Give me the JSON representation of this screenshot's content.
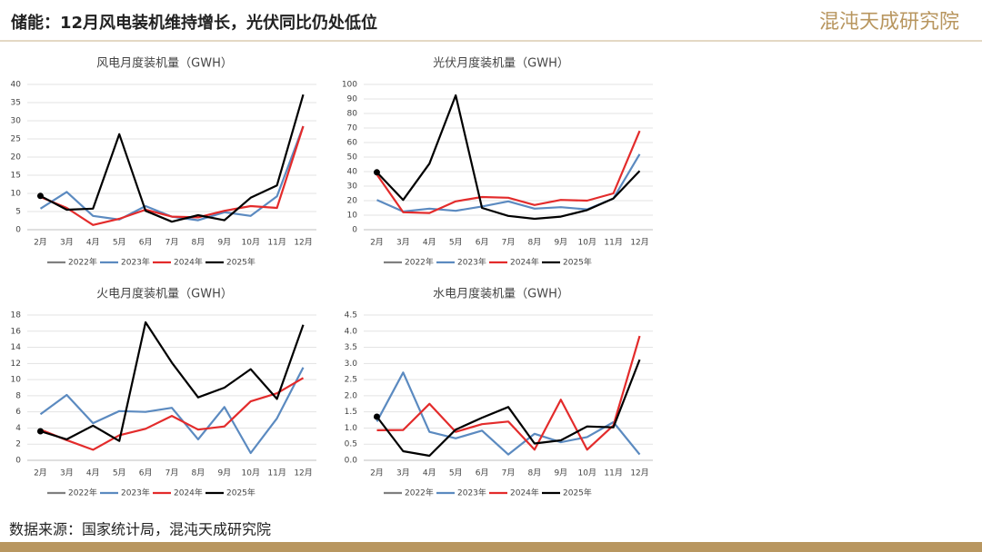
{
  "header": {
    "title": "储能：12月风电装机维持增长，光伏同比仍处低位",
    "logo": "混沌天成研究院"
  },
  "source": "数据来源：国家统计局，混沌天成研究院",
  "chart_data": [
    {
      "type": "line",
      "title": "风电月度装机量（GWH）",
      "categories": [
        "2月",
        "3月",
        "4月",
        "5月",
        "6月",
        "7月",
        "8月",
        "9月",
        "10月",
        "11月",
        "12月"
      ],
      "series": [
        {
          "name": "2022年",
          "color": "#808080",
          "values": [
            null,
            null,
            null,
            null,
            null,
            null,
            null,
            null,
            null,
            null,
            null
          ]
        },
        {
          "name": "2023年",
          "color": "#5b8ac0",
          "values": [
            5.8,
            10.4,
            3.8,
            2.8,
            6.5,
            3.6,
            2.6,
            4.8,
            3.8,
            9.2,
            28.5
          ]
        },
        {
          "name": "2024年",
          "color": "#e32b2b",
          "values": [
            9,
            6,
            1.3,
            3,
            5.5,
            3.6,
            3.4,
            5.2,
            6.5,
            6,
            28.5
          ]
        },
        {
          "name": "2025年",
          "color": "#000000",
          "values": [
            9.3,
            5.5,
            5.8,
            26.3,
            5.2,
            2.2,
            4,
            2.6,
            8.8,
            12.2,
            37.2
          ]
        }
      ],
      "ylim": [
        0,
        40
      ],
      "yticks": [
        0,
        5,
        10,
        15,
        20,
        25,
        30,
        35,
        40
      ],
      "grid": true
    },
    {
      "type": "line",
      "title": "光伏月度装机量（GWH）",
      "categories": [
        "2月",
        "3月",
        "4月",
        "5月",
        "6月",
        "7月",
        "8月",
        "9月",
        "10月",
        "11月",
        "12月"
      ],
      "series": [
        {
          "name": "2022年",
          "color": "#808080",
          "values": [
            null,
            null,
            null,
            null,
            null,
            null,
            null,
            null,
            null,
            null,
            null
          ]
        },
        {
          "name": "2023年",
          "color": "#5b8ac0",
          "values": [
            20.5,
            12.5,
            14.5,
            13,
            16,
            19.5,
            14.5,
            15.5,
            14,
            21.5,
            52
          ]
        },
        {
          "name": "2024年",
          "color": "#e32b2b",
          "values": [
            38,
            12,
            11.5,
            19.5,
            22.5,
            22,
            17,
            20.5,
            20,
            25,
            68
          ]
        },
        {
          "name": "2025年",
          "color": "#000000",
          "values": [
            39.5,
            20.5,
            45.5,
            92.5,
            15,
            9.5,
            7.5,
            9,
            13.5,
            21.5,
            40.5
          ]
        }
      ],
      "ylim": [
        0,
        100
      ],
      "yticks": [
        0,
        10,
        20,
        30,
        40,
        50,
        60,
        70,
        80,
        90,
        100
      ],
      "grid": true
    },
    {
      "type": "line",
      "title": "火电月度装机量（GWH）",
      "categories": [
        "2月",
        "3月",
        "4月",
        "5月",
        "6月",
        "7月",
        "8月",
        "9月",
        "10月",
        "11月",
        "12月"
      ],
      "series": [
        {
          "name": "2022年",
          "color": "#808080",
          "values": [
            null,
            null,
            null,
            null,
            null,
            null,
            null,
            null,
            null,
            null,
            null
          ]
        },
        {
          "name": "2023年",
          "color": "#5b8ac0",
          "values": [
            5.7,
            8.1,
            4.6,
            6.1,
            6,
            6.5,
            2.6,
            6.6,
            0.9,
            5.2,
            11.5
          ]
        },
        {
          "name": "2024年",
          "color": "#e32b2b",
          "values": [
            3.8,
            2.5,
            1.3,
            3.1,
            3.9,
            5.5,
            3.8,
            4.2,
            7.3,
            8.3,
            10.2
          ]
        },
        {
          "name": "2025年",
          "color": "#000000",
          "values": [
            3.6,
            2.6,
            4.3,
            2.4,
            17.1,
            12.1,
            7.8,
            9,
            11.3,
            7.6,
            16.8
          ]
        }
      ],
      "ylim": [
        0,
        18
      ],
      "yticks": [
        0,
        2,
        4,
        6,
        8,
        10,
        12,
        14,
        16,
        18
      ],
      "grid": true
    },
    {
      "type": "line",
      "title": "水电月度装机量（GWH）",
      "categories": [
        "2月",
        "3月",
        "4月",
        "5月",
        "6月",
        "7月",
        "8月",
        "9月",
        "10月",
        "11月",
        "12月"
      ],
      "series": [
        {
          "name": "2022年",
          "color": "#808080",
          "values": [
            null,
            null,
            null,
            null,
            null,
            null,
            null,
            null,
            null,
            null,
            null
          ]
        },
        {
          "name": "2023年",
          "color": "#5b8ac0",
          "values": [
            1.2,
            2.72,
            0.88,
            0.68,
            0.92,
            0.18,
            0.82,
            0.56,
            0.72,
            1.18,
            0.18
          ]
        },
        {
          "name": "2024年",
          "color": "#e32b2b",
          "values": [
            0.93,
            0.94,
            1.75,
            0.88,
            1.12,
            1.2,
            0.33,
            1.88,
            0.33,
            1.08,
            3.85
          ]
        },
        {
          "name": "2025年",
          "color": "#000000",
          "values": [
            1.35,
            0.28,
            0.14,
            0.95,
            1.32,
            1.65,
            0.52,
            0.62,
            1.05,
            1.02,
            3.12
          ]
        }
      ],
      "ylim": [
        0,
        4.5
      ],
      "yticks": [
        {
          "value": 0,
          "label": "0.0"
        },
        {
          "value": 0.5,
          "label": "0.5"
        },
        {
          "value": 1,
          "label": "1.0"
        },
        {
          "value": 1.5,
          "label": "1.5"
        },
        {
          "value": 2,
          "label": "2.0"
        },
        {
          "value": 2.5,
          "label": "2.5"
        },
        {
          "value": 3,
          "label": "3.0"
        },
        {
          "value": 3.5,
          "label": "3.5"
        },
        {
          "value": 4,
          "label": "4.0"
        },
        {
          "value": 4.5,
          "label": "4.5"
        }
      ],
      "grid": true
    }
  ]
}
